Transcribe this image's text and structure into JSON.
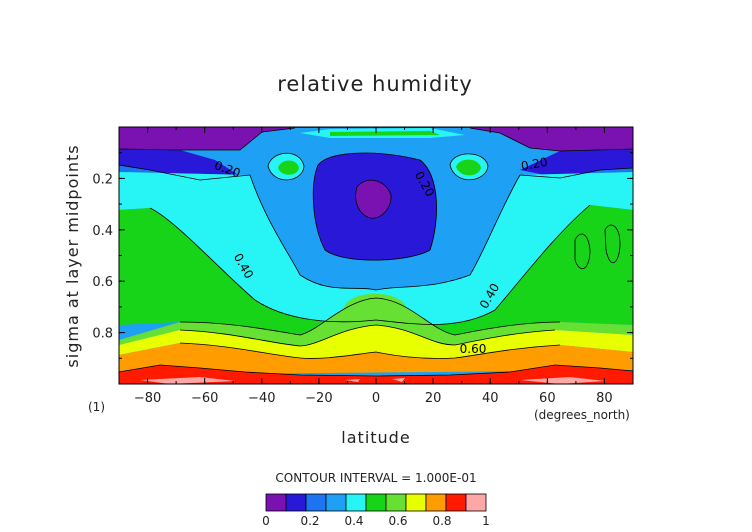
{
  "chart_data": {
    "type": "heatmap",
    "subtype": "filled-contour",
    "title": "relative humidity",
    "xlabel": "latitude",
    "ylabel": "sigma at layer midpoints",
    "x_units_note": "(degrees_north)",
    "corner_note": "(1)",
    "xlim": [
      -90,
      90
    ],
    "ylim": [
      1.0,
      0.0
    ],
    "y_inverted": true,
    "x_ticks": [
      -80,
      -60,
      -40,
      -20,
      0,
      20,
      40,
      60,
      80
    ],
    "y_ticks": [
      0.2,
      0.4,
      0.6,
      0.8
    ],
    "x_tick_labels": [
      "−80",
      "−60",
      "−40",
      "−20",
      "0",
      "20",
      "40",
      "60",
      "80"
    ],
    "y_tick_labels": [
      "0.2",
      "0.4",
      "0.6",
      "0.8"
    ],
    "contour_interval_text": "CONTOUR INTERVAL = 1.000E-01",
    "contour_labels": [
      "0.20",
      "0.20",
      "0.20",
      "0.40",
      "0.40",
      "0.60"
    ],
    "colorbar": {
      "levels": [
        0,
        0.1,
        0.2,
        0.3,
        0.4,
        0.5,
        0.6,
        0.7,
        0.8,
        0.9,
        1.0
      ],
      "tick_labels": [
        "0",
        "0.2",
        "0.4",
        "0.6",
        "0.8",
        "1"
      ],
      "colors": [
        "#7a12b2",
        "#2a18d8",
        "#1b74f0",
        "#1ea0f4",
        "#27f4f4",
        "#18d418",
        "#66e033",
        "#e8ff00",
        "#ff9c00",
        "#ff1a00",
        "#ffa6a6"
      ]
    },
    "fields": {
      "band_0_1_boundary_sigma": 0.05,
      "band_1_2_boundary_sigma": 0.1,
      "upper_center_minimum": {
        "lat": -2,
        "sigma": 0.3,
        "value": 0.05
      },
      "side_cells": [
        {
          "lat": -32,
          "sigma": 0.18,
          "value": 0.55
        },
        {
          "lat": 30,
          "sigma": 0.18,
          "value": 0.55
        }
      ],
      "surface_maxima": [
        {
          "lat": -60,
          "sigma": 0.97,
          "value": 0.95
        },
        {
          "lat": 65,
          "sigma": 0.97,
          "value": 0.95
        }
      ]
    }
  }
}
